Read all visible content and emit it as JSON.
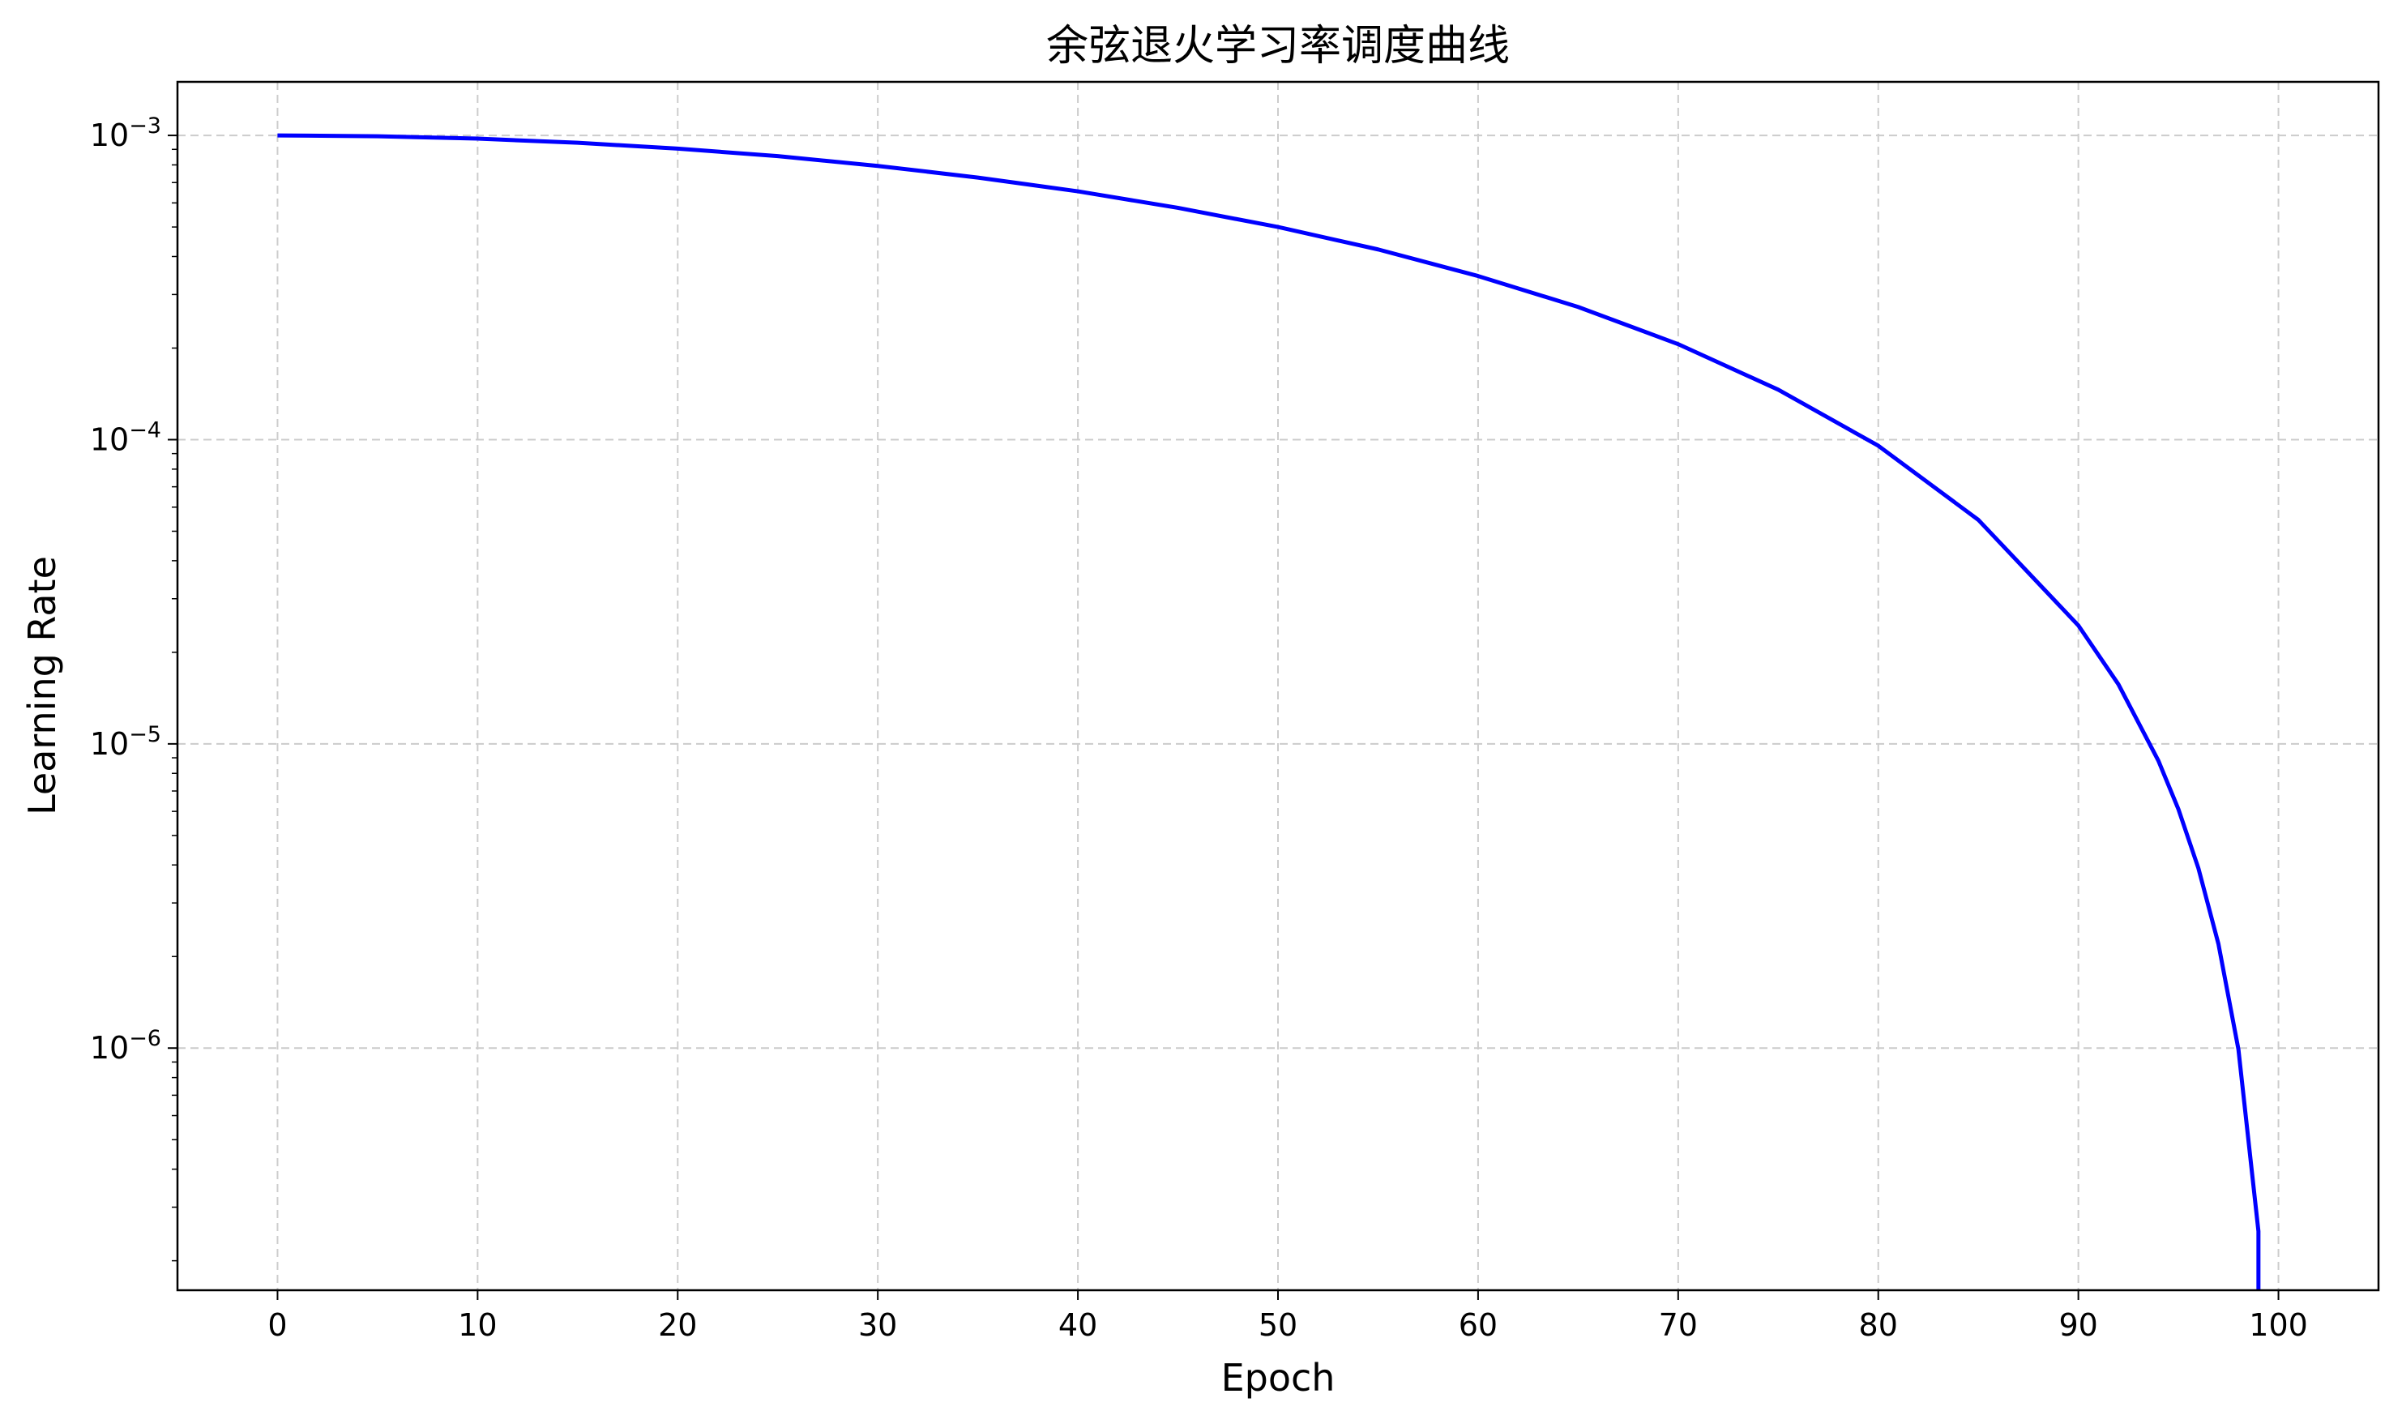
{
  "chart_data": {
    "type": "line",
    "title": "余弦退火学习率调度曲线",
    "xlabel": "Epoch",
    "ylabel": "Learning Rate",
    "xscale": "linear",
    "yscale": "log",
    "xlim": [
      -5,
      105
    ],
    "ylim": [
      1.6e-07,
      0.0015
    ],
    "grid": true,
    "grid_style": "dashed",
    "x_ticks": [
      0,
      10,
      20,
      30,
      40,
      50,
      60,
      70,
      80,
      90,
      100
    ],
    "x_tick_labels": [
      "0",
      "10",
      "20",
      "30",
      "40",
      "50",
      "60",
      "70",
      "80",
      "90",
      "100"
    ],
    "y_ticks": [
      1e-06,
      1e-05,
      0.0001,
      0.001
    ],
    "y_tick_labels": [
      {
        "base": "10",
        "exp": "−6"
      },
      {
        "base": "10",
        "exp": "−5"
      },
      {
        "base": "10",
        "exp": "−4"
      },
      {
        "base": "10",
        "exp": "−3"
      }
    ],
    "line_color": "#0000ff",
    "grid_color": "#cccccc",
    "series": [
      {
        "x": [
          0,
          5,
          10,
          15,
          20,
          25,
          30,
          35,
          40,
          45,
          50,
          55,
          60,
          65,
          70,
          75,
          80,
          85,
          90,
          92,
          94,
          95,
          96,
          97,
          98,
          99,
          99
        ],
        "y": [
          0.001,
          0.000994,
          0.000976,
          0.000946,
          0.000905,
          0.000855,
          0.000794,
          0.000727,
          0.000655,
          0.000578,
          0.0005,
          0.000422,
          0.000345,
          0.000273,
          0.000206,
          0.000146,
          9.55e-05,
          5.45e-05,
          2.45e-05,
          1.57e-05,
          8.8e-06,
          6.1e-06,
          3.9e-06,
          2.2e-06,
          9.9e-07,
          2.5e-07,
          1.6e-07
        ]
      }
    ]
  }
}
